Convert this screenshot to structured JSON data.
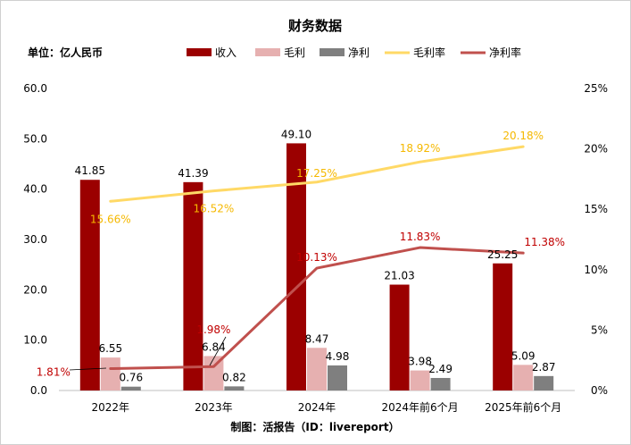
{
  "chart_data": {
    "type": "bar",
    "title": "财务数据",
    "unit_label": "单位：亿人民币",
    "source_note": "制图：活报告（ID：livereport）",
    "categories": [
      "2022年",
      "2023年",
      "2024年",
      "2024年前6个月",
      "2025年前6个月"
    ],
    "series": [
      {
        "name": "收入",
        "kind": "bar",
        "axis": "left",
        "color": "#9b0000",
        "values": [
          41.85,
          41.39,
          49.1,
          21.03,
          25.25
        ],
        "labels": [
          "41.85",
          "41.39",
          "49.10",
          "21.03",
          "25.25"
        ]
      },
      {
        "name": "毛利",
        "kind": "bar",
        "axis": "left",
        "color": "#e6b0b0",
        "values": [
          6.55,
          6.84,
          8.47,
          3.98,
          5.09
        ],
        "labels": [
          "6.55",
          "6.84",
          "8.47",
          "3.98",
          "5.09"
        ]
      },
      {
        "name": "净利",
        "kind": "bar",
        "axis": "left",
        "color": "#7f7f7f",
        "values": [
          0.76,
          0.82,
          4.98,
          2.49,
          2.87
        ],
        "labels": [
          "0.76",
          "0.82",
          "4.98",
          "2.49",
          "2.87"
        ]
      },
      {
        "name": "毛利率",
        "kind": "line",
        "axis": "right",
        "color": "#ffd966",
        "label_color": "#f5b800",
        "values": [
          15.66,
          16.52,
          17.25,
          18.92,
          20.18
        ],
        "labels": [
          "15.66%",
          "16.52%",
          "17.25%",
          "18.92%",
          "20.18%"
        ]
      },
      {
        "name": "净利率",
        "kind": "line",
        "axis": "right",
        "color": "#c0504d",
        "label_color": "#c00000",
        "values": [
          1.81,
          1.98,
          10.13,
          11.83,
          11.38
        ],
        "labels": [
          "1.81%",
          "1.98%",
          "10.13%",
          "11.83%",
          "11.38%"
        ]
      }
    ],
    "y_left": {
      "min": 0,
      "max": 60,
      "ticks": [
        "0.0",
        "10.0",
        "20.0",
        "30.0",
        "40.0",
        "50.0",
        "60.0"
      ]
    },
    "y_right": {
      "min": 0,
      "max": 25,
      "ticks": [
        "0%",
        "5%",
        "10%",
        "15%",
        "20%",
        "25%"
      ]
    },
    "legend_position": "top-center",
    "grid": false
  }
}
